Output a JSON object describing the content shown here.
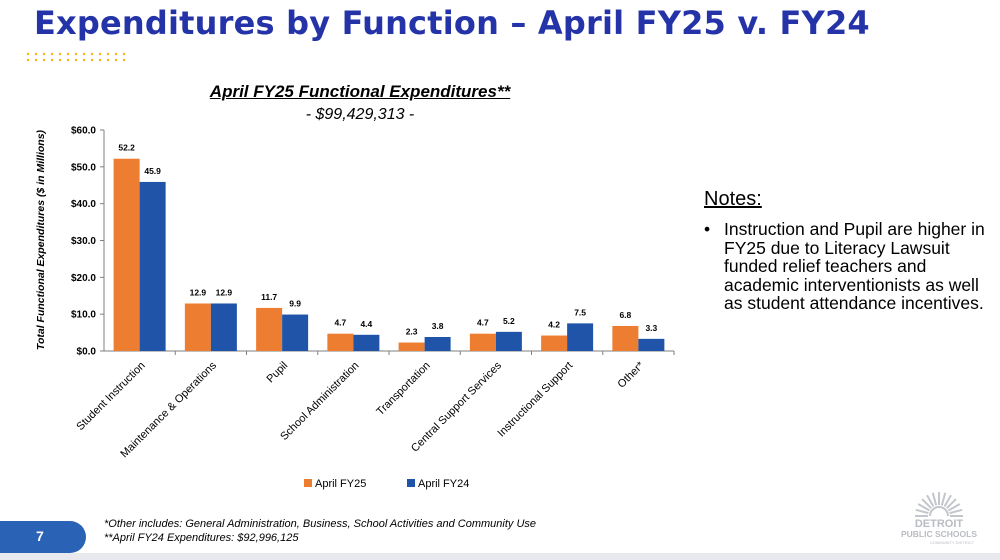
{
  "page": {
    "title": "Expenditures by Function – April FY25 v. FY24",
    "number": "7",
    "footnotes": [
      "*Other includes: General Administration, Business, School Activities and Community Use",
      "**April FY24 Expenditures: $92,996,125"
    ],
    "accent_color": "#2433a8",
    "dots_color": "#f2b800"
  },
  "chart_data": {
    "type": "bar",
    "title": "April FY25 Functional Expenditures**",
    "subtitle": "- $99,429,313 -",
    "ylabel": "Total Functional Expenditures ($ in Millions)",
    "xlabel": "",
    "ylim": [
      0,
      60
    ],
    "yticks": [
      "$0.0",
      "$10.0",
      "$20.0",
      "$30.0",
      "$40.0",
      "$50.0",
      "$60.0"
    ],
    "grid": false,
    "legend_position": "bottom",
    "categories": [
      "Student Instruction",
      "Maintenance & Operations",
      "Pupil",
      "School Administration",
      "Transportation",
      "Central Support Services",
      "Instructional Support",
      "Other*"
    ],
    "series": [
      {
        "name": "April FY25",
        "color": "#ed7d31",
        "values": [
          52.2,
          12.9,
          11.7,
          4.7,
          2.3,
          4.7,
          4.2,
          6.8
        ],
        "labels": [
          "52.2",
          "12.9",
          "11.7",
          "4.7",
          "2.3",
          "4.7",
          "4.2",
          "6.8"
        ]
      },
      {
        "name": "April FY24",
        "color": "#1f54a8",
        "values": [
          45.9,
          12.9,
          9.9,
          4.4,
          3.8,
          5.2,
          7.5,
          3.3
        ],
        "labels": [
          "45.9",
          "12.9",
          "9.9",
          "4.4",
          "3.8",
          "5.2",
          "7.5",
          "3.3"
        ]
      }
    ]
  },
  "notes": {
    "heading": "Notes:",
    "bullet": "•",
    "items": [
      "Instruction and Pupil are higher in FY25 due to Literacy Lawsuit funded relief teachers and academic interventionists as well as student attendance incentives."
    ]
  },
  "logo": {
    "line1": "DETROIT",
    "line2": "PUBLIC SCHOOLS",
    "line3": "COMMUNITY DISTRICT"
  }
}
